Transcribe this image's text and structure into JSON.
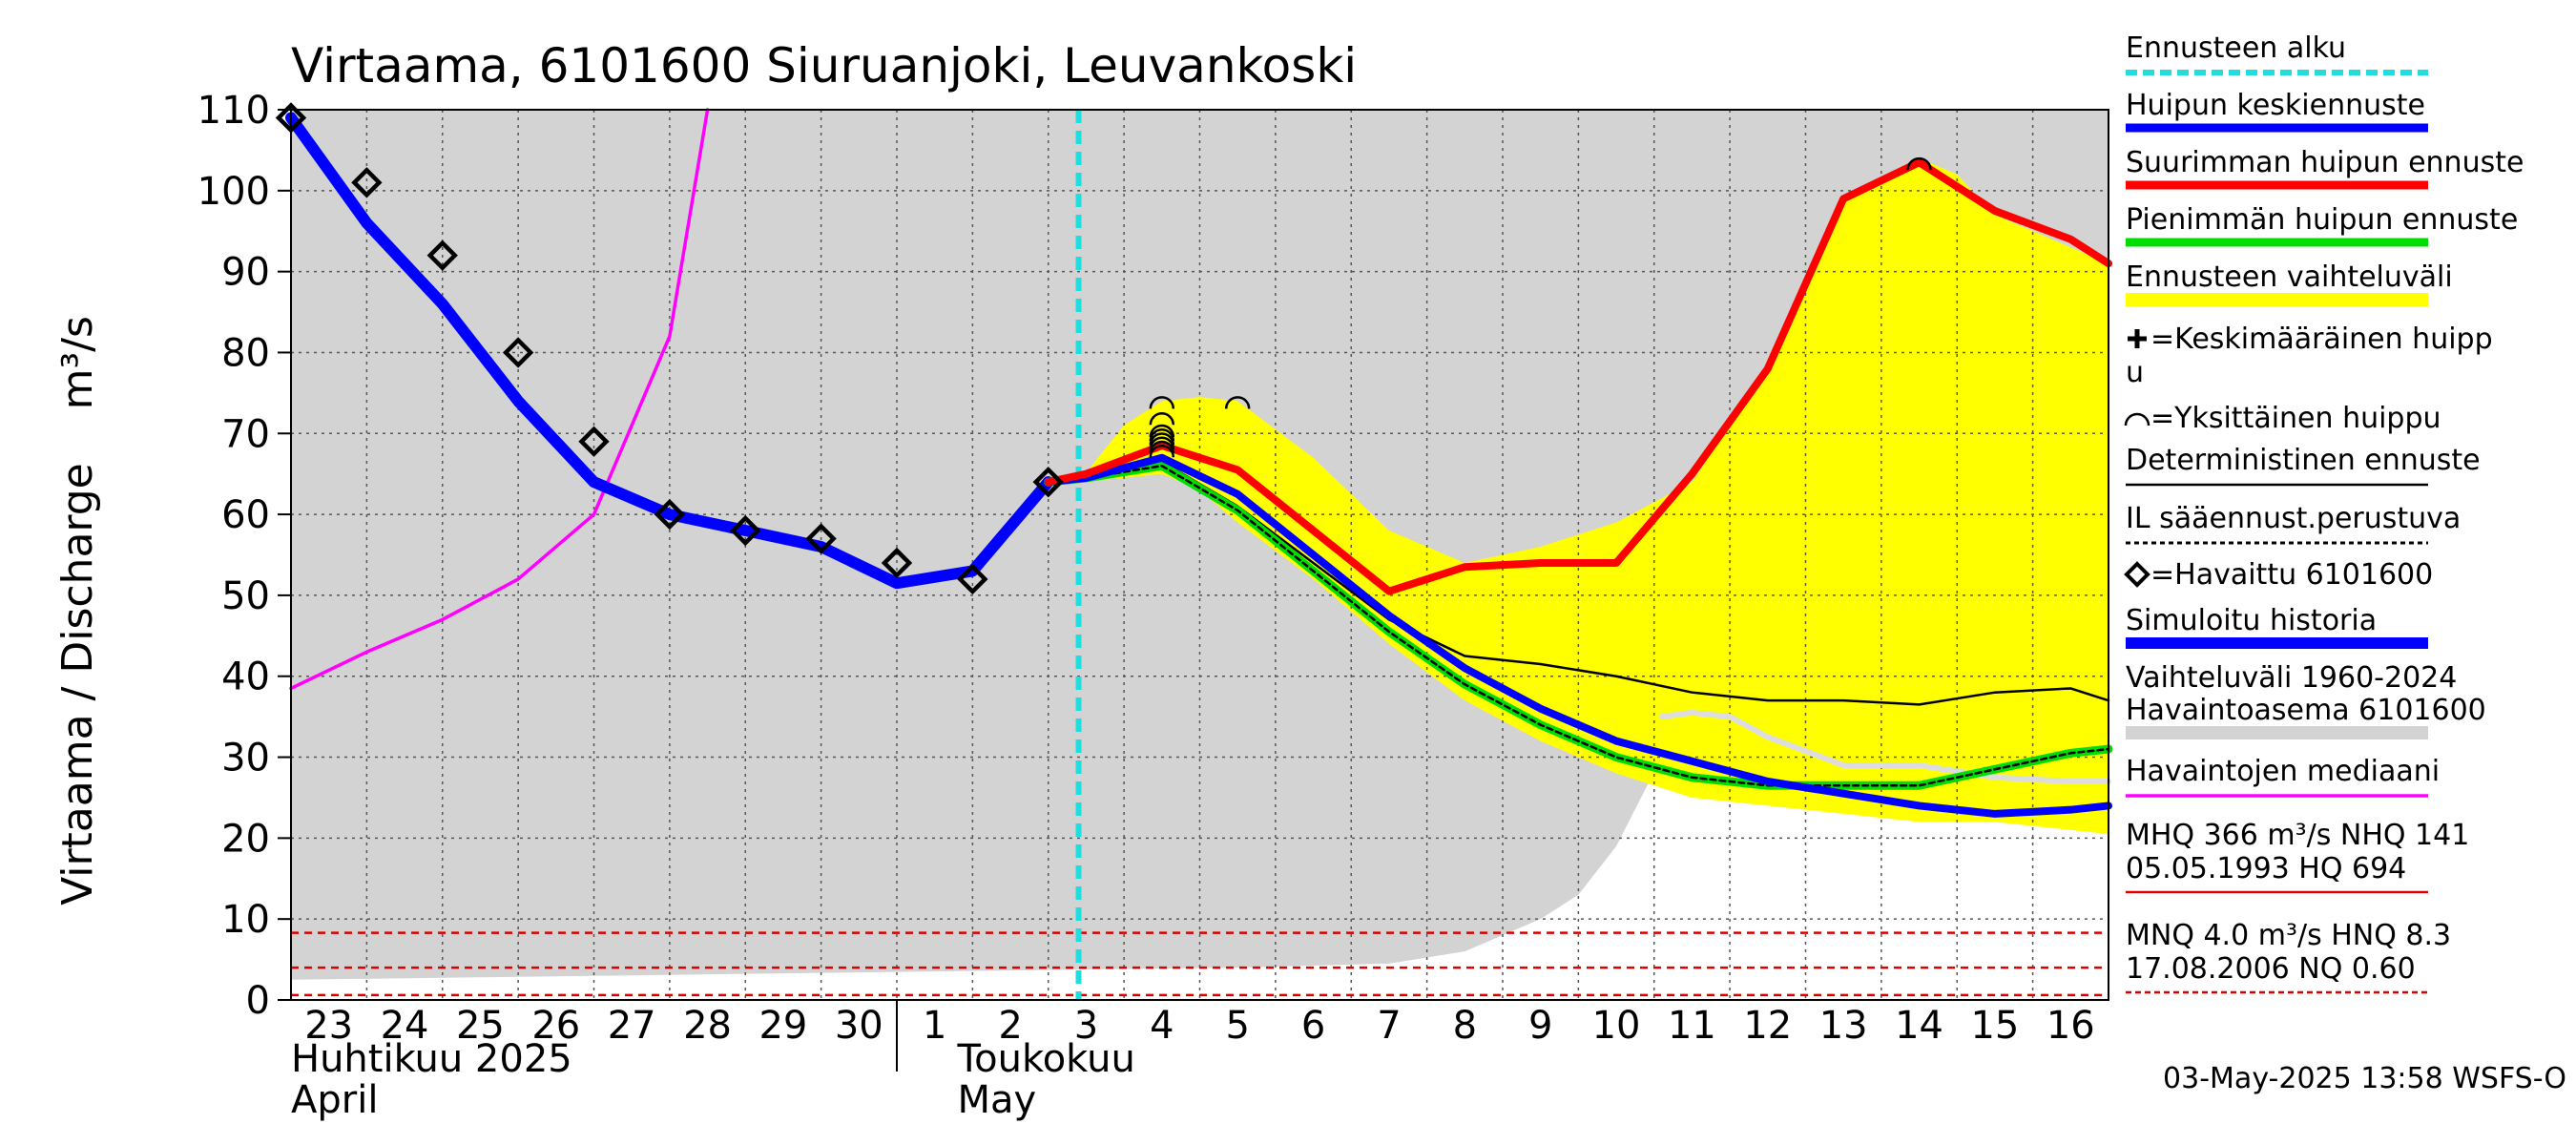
{
  "chart_data": {
    "type": "line",
    "title": "Virtaama, 6101600 Siuruanjoki, Leuvankoski",
    "ylabel": "Virtaama / Discharge    m³/s",
    "ylim": [
      0,
      110
    ],
    "yticks": [
      0,
      10,
      20,
      30,
      40,
      50,
      60,
      70,
      80,
      90,
      100,
      110
    ],
    "xlim": [
      -0.5,
      23.5
    ],
    "x_tick_labels": [
      "23",
      "24",
      "25",
      "26",
      "27",
      "28",
      "29",
      "30",
      "1",
      "2",
      "3",
      "4",
      "5",
      "6",
      "7",
      "8",
      "9",
      "10",
      "11",
      "12",
      "13",
      "14",
      "15",
      "16"
    ],
    "month_labels": [
      {
        "line1": "Huhtikuu  2025",
        "line2": "April",
        "x": -0.5
      },
      {
        "line1": "Toukokuu",
        "line2": "May",
        "x": 8.3
      }
    ],
    "forecast_start_x": 9.9,
    "grid": true,
    "legend_position": "right",
    "colors": {
      "forecast_start": "#22dddd",
      "mean_peak": "#0000ff",
      "max_peak": "#ff0000",
      "min_peak": "#00dd00",
      "range_fill": "#ffff00",
      "history_range": "#d3d3d3",
      "simulated": "#0000ff",
      "median": "#ff00ff",
      "deterministic": "#000000",
      "observed": "#000000",
      "reference_lines": "#dd0000"
    },
    "history_range": {
      "x": [
        -0.5,
        12,
        14,
        15,
        16,
        16.5,
        17,
        17.6,
        18,
        18.4,
        19,
        23.5
      ],
      "upper": [
        110,
        110,
        110,
        110,
        110,
        110,
        110,
        110,
        110,
        110,
        110,
        110
      ],
      "lower": [
        2.5,
        4,
        4.5,
        6,
        10,
        13,
        19,
        30,
        36,
        35.5,
        35,
        35
      ]
    },
    "forecast_range": {
      "x": [
        9.9,
        10.5,
        11,
        11.5,
        12,
        13,
        14,
        15,
        16,
        17,
        18,
        19,
        20,
        21,
        21.5,
        22,
        23,
        23.5
      ],
      "upper": [
        64,
        71,
        74,
        74.5,
        74,
        67,
        58,
        54,
        56,
        59,
        64,
        78,
        99,
        104,
        102,
        97,
        93,
        91
      ],
      "lower": [
        64,
        64.5,
        65,
        63,
        59,
        52,
        44,
        37,
        32,
        28,
        25,
        24,
        23,
        22,
        22,
        22,
        21,
        20.5
      ]
    },
    "series": [
      {
        "name": "Havaintojen mediaani",
        "x": [
          -0.5,
          0.5,
          1.5,
          2.5,
          3.5,
          4.5,
          5.0
        ],
        "values": [
          38.5,
          43,
          47,
          52,
          60,
          82,
          110
        ]
      },
      {
        "name": "Simuloitu historia",
        "x": [
          -0.5,
          0.5,
          1.5,
          2.5,
          3.5,
          4.5,
          5.5,
          6.5,
          7.5,
          8.5,
          9.5
        ],
        "values": [
          109,
          96,
          86,
          74,
          64,
          60,
          58,
          56,
          51.5,
          53,
          64
        ]
      },
      {
        "name": "Huipun keskiennuste",
        "x": [
          9.5,
          10,
          11,
          12,
          13,
          14,
          15,
          16,
          17,
          18,
          19,
          20,
          21,
          22,
          23,
          23.5
        ],
        "values": [
          64,
          64.5,
          67,
          62.5,
          55,
          47.5,
          41,
          36,
          32,
          29.5,
          27,
          25.5,
          24,
          23,
          23.5,
          24
        ]
      },
      {
        "name": "Suurimman huipun ennuste",
        "x": [
          9.5,
          10,
          11,
          12,
          13,
          14,
          15,
          16,
          17,
          18,
          19,
          20,
          21,
          22,
          23,
          23.5
        ],
        "values": [
          64,
          65,
          68.5,
          65.5,
          58,
          50.5,
          53.5,
          54,
          54,
          65,
          78,
          99,
          103.5,
          97.5,
          94,
          91
        ]
      },
      {
        "name": "Pienimmän huipun ennuste",
        "x": [
          9.5,
          10,
          11,
          12,
          13,
          14,
          15,
          16,
          17,
          18,
          19,
          20,
          21,
          22,
          23,
          23.5
        ],
        "values": [
          64,
          64.5,
          66,
          60.5,
          53,
          45.5,
          39,
          34,
          30,
          27.5,
          26.5,
          26.5,
          26.5,
          28.5,
          30.5,
          31
        ]
      },
      {
        "name": "Deterministinen ennuste",
        "x": [
          9.5,
          10,
          11,
          12,
          13,
          14,
          15,
          16,
          17,
          18,
          19,
          20,
          21,
          22,
          23,
          23.5
        ],
        "values": [
          64,
          64.5,
          66.5,
          61,
          54,
          47,
          42.5,
          41.5,
          40,
          38,
          37,
          37,
          36.5,
          38,
          38.5,
          37
        ]
      },
      {
        "name": "IL sääennust.perustuva",
        "x": [
          9.5,
          10,
          11,
          12,
          13,
          14,
          15,
          16,
          17,
          18,
          19,
          20,
          21,
          22,
          23,
          23.5
        ],
        "values": [
          64,
          64.5,
          66,
          60.5,
          53,
          45.5,
          39,
          34,
          30,
          27.5,
          26.5,
          26.5,
          26.5,
          28.5,
          30.5,
          31
        ]
      },
      {
        "name": "Havaintoasema 6101600",
        "x": [
          17.6,
          18,
          18.5,
          19,
          20,
          21,
          22,
          23,
          23.5
        ],
        "values": [
          35,
          35.5,
          35,
          32.5,
          29,
          29,
          27.5,
          27,
          27
        ]
      }
    ],
    "observed": {
      "name": "Havaittu 6101600",
      "x": [
        -0.5,
        0.5,
        1.5,
        2.5,
        3.5,
        4.5,
        5.5,
        6.5,
        7.5,
        8.5,
        9.5
      ],
      "values": [
        109,
        101,
        92,
        80,
        69,
        60,
        58,
        57,
        54,
        52,
        64
      ]
    },
    "single_peaks": {
      "x": [
        11,
        11,
        11,
        11,
        11,
        11,
        11,
        11,
        12,
        21
      ],
      "values": [
        74,
        72,
        70.5,
        70,
        69.5,
        69,
        68.5,
        68,
        74,
        103.5
      ]
    },
    "reference_lines": {
      "values": [
        8.3,
        4.0,
        0.6
      ],
      "labels": [
        "HNQ 8.3",
        "MNQ 4.0",
        "NQ 0.60"
      ]
    }
  },
  "legend": {
    "items": [
      {
        "label": "Ennusteen alku"
      },
      {
        "label": "Huipun keskiennuste"
      },
      {
        "label": "Suurimman huipun ennuste"
      },
      {
        "label": "Pienimmän huipun ennuste"
      },
      {
        "label": "Ennusteen vaihteluväli"
      },
      {
        "label": "=Keskimääräinen huipp"
      },
      {
        "label": "u"
      },
      {
        "label": "=Yksittäinen huippu"
      },
      {
        "label": "Deterministinen ennuste"
      },
      {
        "label": "IL sääennust.perustuva"
      },
      {
        "label": "=Havaittu 6101600"
      },
      {
        "label": "Simuloitu historia"
      },
      {
        "label": "Vaihteluväli 1960-2024"
      },
      {
        "label": " Havaintoasema 6101600"
      },
      {
        "label": "Havaintojen mediaani"
      }
    ],
    "stats": [
      {
        "line1": "MHQ  366 m³/s NHQ  141",
        "line2": "05.05.1993 HQ  694"
      },
      {
        "line1": "MNQ  4.0 m³/s HNQ  8.3",
        "line2": "17.08.2006 NQ 0.60"
      }
    ]
  },
  "footer": "03-May-2025 13:58 WSFS-O"
}
